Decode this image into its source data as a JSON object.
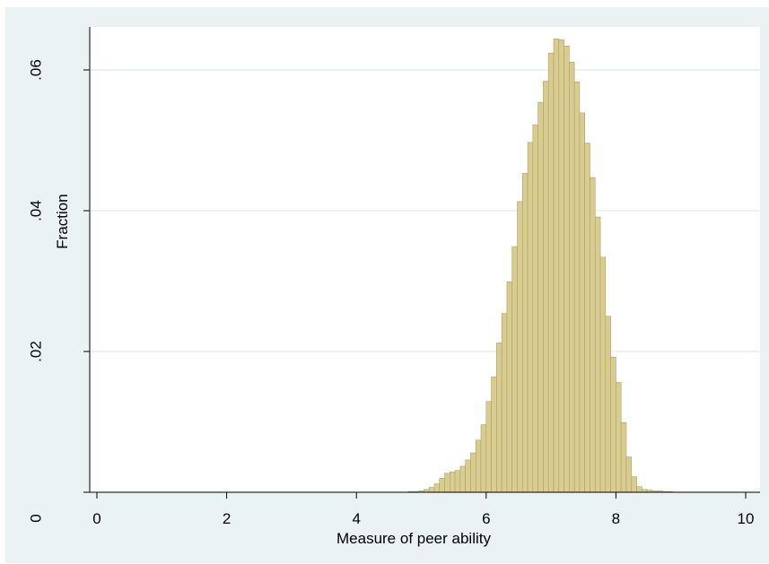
{
  "chart_data": {
    "type": "bar",
    "subtype": "histogram",
    "xlabel": "Measure of peer ability",
    "ylabel": "Fraction",
    "xlim": [
      -0.15,
      10.25
    ],
    "ylim": [
      0,
      0.066
    ],
    "x_ticks": [
      {
        "value": 0,
        "label": "0"
      },
      {
        "value": 2,
        "label": "2"
      },
      {
        "value": 4,
        "label": "4"
      },
      {
        "value": 6,
        "label": "6"
      },
      {
        "value": 8,
        "label": "8"
      },
      {
        "value": 10,
        "label": "10"
      }
    ],
    "y_ticks": [
      {
        "value": 0,
        "label": "0"
      },
      {
        "value": 0.02,
        "label": ".02"
      },
      {
        "value": 0.04,
        "label": ".04"
      },
      {
        "value": 0.06,
        "label": ".06"
      }
    ],
    "grid": "horizontal",
    "bin_width": 0.08,
    "bins_start": 4.8,
    "values": [
      0.0001,
      0.0001,
      0.0002,
      0.0004,
      0.0007,
      0.0012,
      0.002,
      0.0027,
      0.0029,
      0.0031,
      0.0037,
      0.0046,
      0.0056,
      0.0074,
      0.0096,
      0.0129,
      0.0164,
      0.0212,
      0.0254,
      0.0299,
      0.0349,
      0.0413,
      0.0453,
      0.0497,
      0.0522,
      0.0554,
      0.0584,
      0.0624,
      0.0644,
      0.0643,
      0.0634,
      0.0611,
      0.0583,
      0.0539,
      0.0496,
      0.0447,
      0.0391,
      0.0334,
      0.025,
      0.0192,
      0.0156,
      0.0099,
      0.005,
      0.0022,
      0.0008,
      0.0004,
      0.0003,
      0.0002,
      0.0002,
      0.0001,
      0.0001
    ],
    "colors": {
      "background": "#eaf2f3",
      "plot_region": "#ffffff",
      "bar_fill": "#d8cc8e",
      "bar_edge": "#ada06a",
      "grid": "#e7eff2",
      "axis": "#000000"
    }
  }
}
